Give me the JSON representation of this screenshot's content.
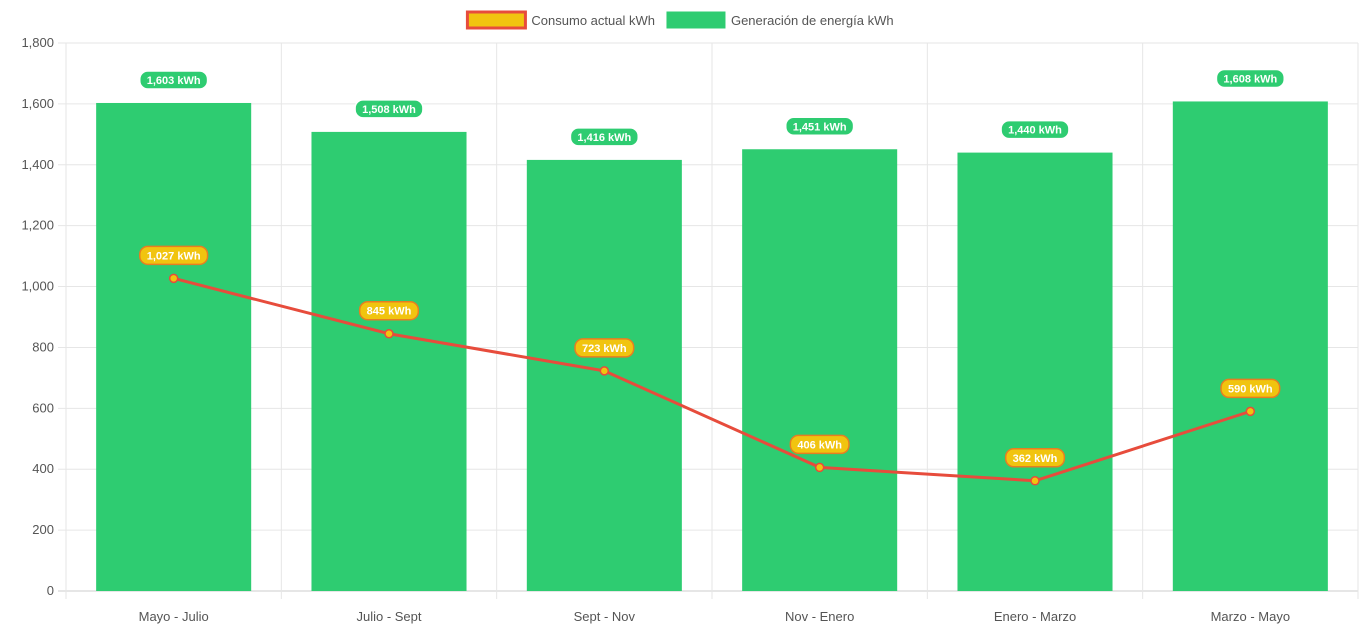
{
  "chart_data": {
    "type": "bar",
    "categories": [
      "Mayo - Julio",
      "Julio - Sept",
      "Sept - Nov",
      "Nov - Enero",
      "Enero - Marzo",
      "Marzo - Mayo"
    ],
    "series": [
      {
        "name": "Consumo actual kWh",
        "type": "line",
        "values": [
          1027,
          845,
          723,
          406,
          362,
          590
        ],
        "labels": [
          "1,027 kWh",
          "845 kWh",
          "723 kWh",
          "406 kWh",
          "362 kWh",
          "590 kWh"
        ],
        "color": "#e74c3c",
        "fill_color": "#f1c40f"
      },
      {
        "name": "Generación de energía kWh",
        "type": "bar",
        "values": [
          1603,
          1508,
          1416,
          1451,
          1440,
          1608
        ],
        "labels": [
          "1,603 kWh",
          "1,508 kWh",
          "1,416 kWh",
          "1,451 kWh",
          "1,440 kWh",
          "1,608 kWh"
        ],
        "color": "#2ecc71"
      }
    ],
    "title": "",
    "xlabel": "",
    "ylabel": "",
    "ylim": [
      0,
      1800
    ],
    "yticks": [
      0,
      200,
      400,
      600,
      800,
      1000,
      1200,
      1400,
      1600,
      1800
    ],
    "ytick_labels": [
      "0",
      "200",
      "400",
      "600",
      "800",
      "1,000",
      "1,200",
      "1,400",
      "1,600",
      "1,800"
    ],
    "grid": true,
    "legend_position": "top-center"
  }
}
